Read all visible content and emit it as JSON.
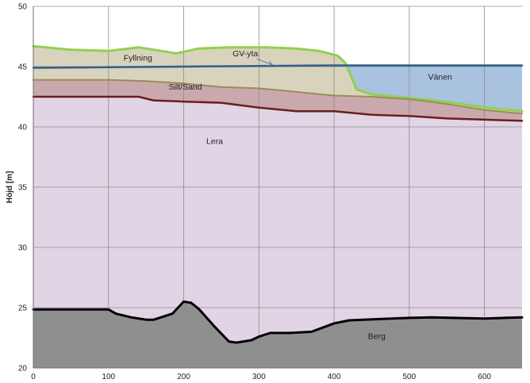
{
  "chart_data": {
    "type": "area",
    "title": "",
    "xlabel": "",
    "ylabel": "Höjd [m]",
    "xlim": [
      0,
      650
    ],
    "ylim": [
      20,
      50
    ],
    "xticks": [
      0,
      100,
      200,
      300,
      400,
      500,
      600
    ],
    "yticks": [
      20,
      25,
      30,
      35,
      40,
      45,
      50
    ],
    "grid": true,
    "layers": [
      {
        "name": "Fyllning",
        "color": "#d9d3bd",
        "top_line": "Markyta",
        "bottom_line": "Silt/Sand"
      },
      {
        "name": "Vänen",
        "color": "#a9c2e0",
        "top_line": "GV-yta",
        "bottom_line": "Markyta"
      },
      {
        "name": "Silt/Sand",
        "color": "#c9a9ae",
        "top_line": "Silt/Sand",
        "bottom_line": "Lera top"
      },
      {
        "name": "Lera",
        "color": "#e1d4e5",
        "top_line": "Lera top",
        "bottom_line": "Berg"
      },
      {
        "name": "Berg",
        "color": "#8f8f8f",
        "top_line": "Berg",
        "bottom_line": "axis"
      }
    ],
    "series": [
      {
        "id": "Markyta",
        "color": "#8fd14f",
        "width": 3,
        "x": [
          0,
          50,
          100,
          140,
          160,
          190,
          220,
          260,
          310,
          350,
          380,
          405,
          415,
          422,
          430,
          450,
          500,
          560,
          600,
          650
        ],
        "y": [
          46.7,
          46.4,
          46.3,
          46.6,
          46.4,
          46.1,
          46.5,
          46.6,
          46.6,
          46.5,
          46.3,
          45.9,
          45.3,
          44.3,
          43.1,
          42.7,
          42.4,
          42.0,
          41.6,
          41.3
        ]
      },
      {
        "id": "GV-yta",
        "name": "GV-yta",
        "color": "#2e5f8a",
        "width": 2.5,
        "x": [
          0,
          100,
          200,
          300,
          400,
          420,
          500,
          650
        ],
        "y": [
          44.9,
          44.95,
          45.0,
          45.05,
          45.1,
          45.1,
          45.1,
          45.1
        ]
      },
      {
        "id": "Silt/Sand",
        "color": "#9b8c5a",
        "width": 2,
        "x": [
          0,
          50,
          100,
          150,
          200,
          250,
          300,
          350,
          400,
          450,
          500,
          550,
          600,
          650
        ],
        "y": [
          43.9,
          43.9,
          43.9,
          43.8,
          43.6,
          43.3,
          43.2,
          42.9,
          42.6,
          42.5,
          42.3,
          41.9,
          41.4,
          41.1
        ]
      },
      {
        "id": "Lera top",
        "color": "#6b1e1e",
        "width": 2.5,
        "x": [
          0,
          50,
          100,
          140,
          160,
          200,
          250,
          300,
          350,
          370,
          400,
          450,
          500,
          550,
          600,
          650
        ],
        "y": [
          42.5,
          42.5,
          42.5,
          42.5,
          42.2,
          42.1,
          42.0,
          41.6,
          41.3,
          41.3,
          41.3,
          41.0,
          40.9,
          40.7,
          40.6,
          40.5
        ]
      },
      {
        "id": "Berg",
        "color": "#000000",
        "width": 3,
        "x": [
          0,
          50,
          100,
          110,
          130,
          150,
          160,
          185,
          200,
          210,
          220,
          240,
          260,
          270,
          290,
          300,
          315,
          340,
          370,
          400,
          420,
          460,
          500,
          530,
          560,
          600,
          650
        ],
        "y": [
          24.85,
          24.85,
          24.85,
          24.5,
          24.2,
          24.0,
          24.0,
          24.5,
          25.5,
          25.4,
          24.9,
          23.5,
          22.2,
          22.1,
          22.3,
          22.6,
          22.9,
          22.9,
          23.0,
          23.7,
          23.95,
          24.05,
          24.15,
          24.2,
          24.15,
          24.1,
          24.2
        ]
      }
    ],
    "annotations": [
      {
        "text": "Fyllning",
        "x": 120,
        "y": 45.5
      },
      {
        "text": "GV-yta",
        "x": 265,
        "y": 45.85
      },
      {
        "text": "Vänen",
        "x": 525,
        "y": 43.9
      },
      {
        "text": "Silt/Sand",
        "x": 180,
        "y": 43.1
      },
      {
        "text": "Lera",
        "x": 230,
        "y": 38.6
      },
      {
        "text": "Berg",
        "x": 445,
        "y": 22.4
      }
    ],
    "arrow": {
      "from": [
        297,
        45.65
      ],
      "to": [
        318,
        45.15
      ],
      "color": "#4f7fb4"
    }
  }
}
